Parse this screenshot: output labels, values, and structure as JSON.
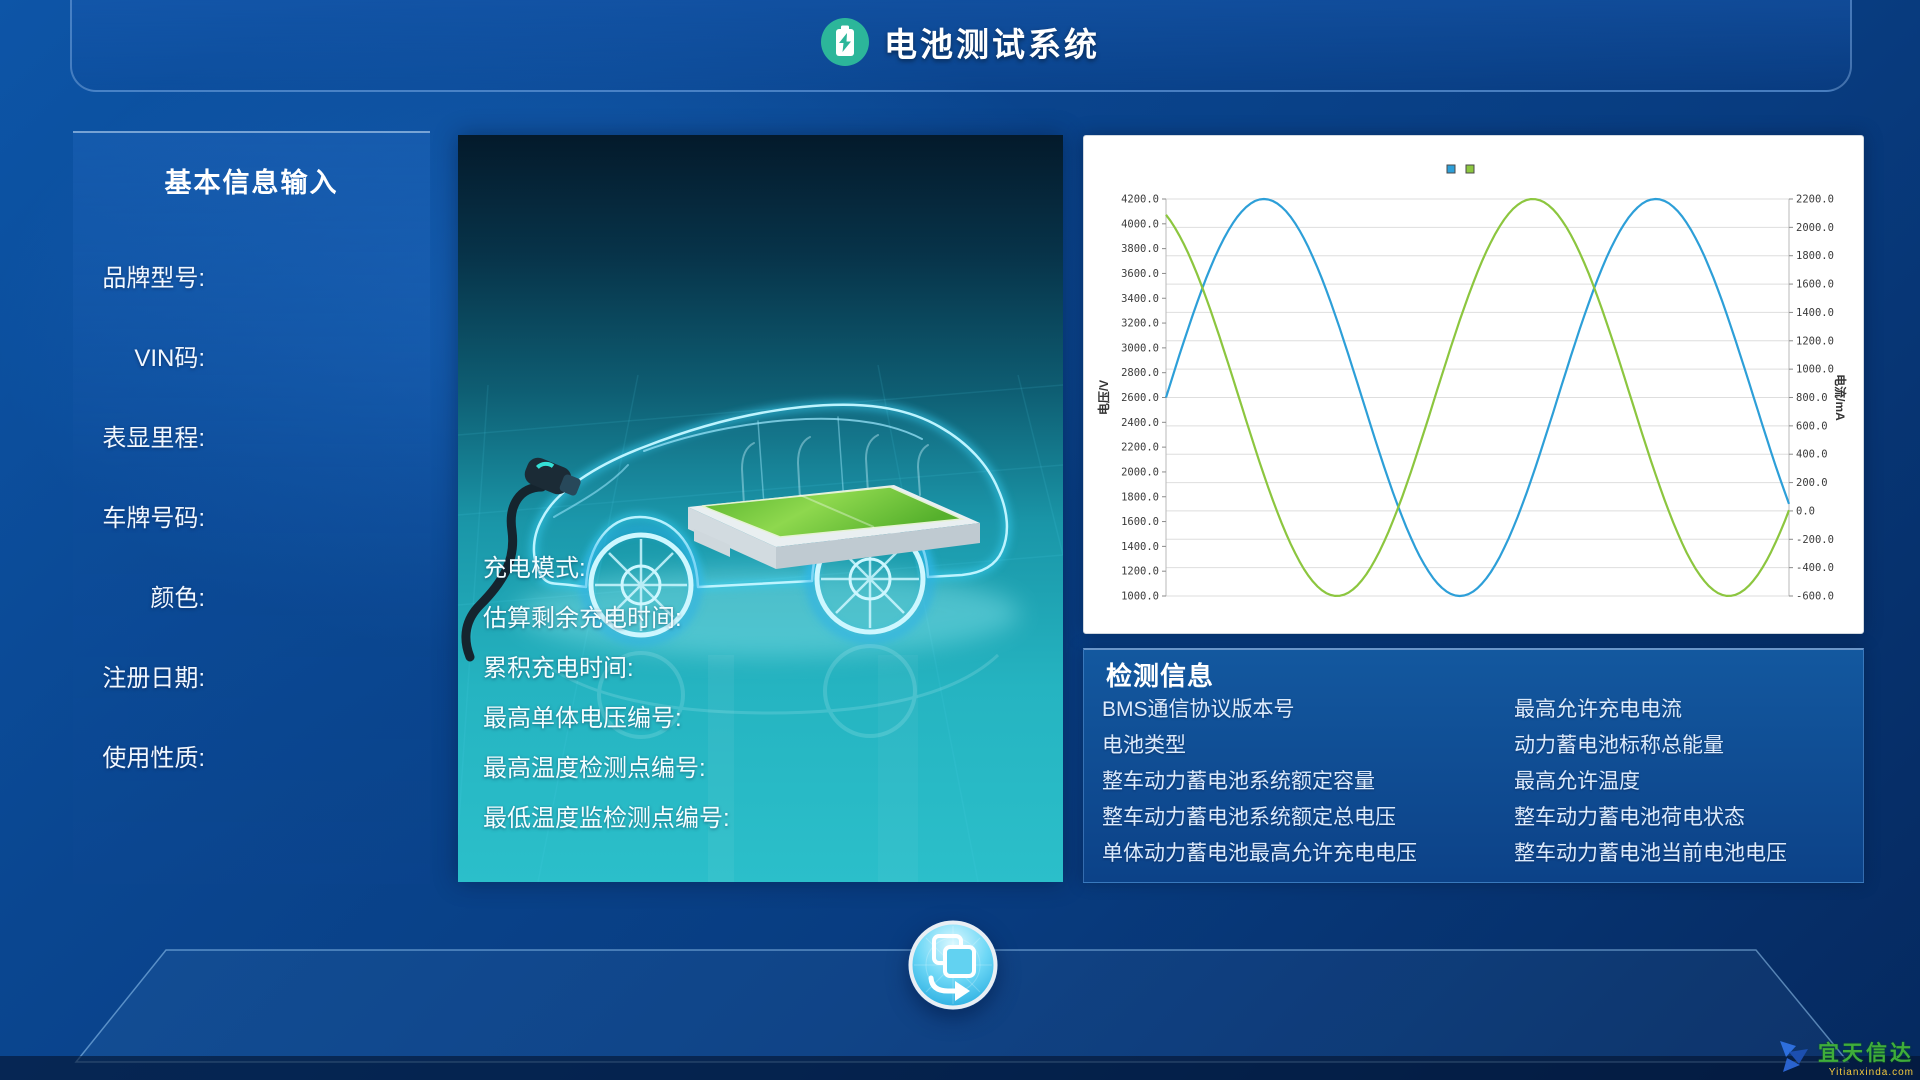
{
  "header": {
    "title": "电池测试系统",
    "icon": "battery-charging-icon"
  },
  "sidebar": {
    "title": "基本信息输入",
    "fields": [
      "品牌型号:",
      "VIN码:",
      "表显里程:",
      "车牌号码:",
      "颜色:",
      "注册日期:",
      "使用性质:"
    ]
  },
  "vehicle_panel": {
    "fields": [
      "充电模式:",
      "估算剩余充电时间:",
      "累积充电时间:",
      "最高单体电压编号:",
      "最高温度检测点编号:",
      "最低温度监检测点编号:"
    ]
  },
  "chart_data": {
    "type": "line",
    "title": "",
    "grid": "horizontal",
    "legend": {
      "position": "top-center",
      "text_labels": false,
      "entries": [
        {
          "name": "电压",
          "color": "#2d9fd8"
        },
        {
          "name": "电流",
          "color": "#8cc63f"
        }
      ]
    },
    "axes": {
      "left": {
        "label": "电压/V",
        "min": 1000,
        "max": 4200,
        "step": 200,
        "tick_format": "0.0"
      },
      "right": {
        "label": "电流/mA",
        "min": -600,
        "max": 2200,
        "step": 200,
        "tick_format": "0.0"
      }
    },
    "series": [
      {
        "name": "电压",
        "axis": "left",
        "color": "#2d9fd8",
        "waveform": "sine",
        "center": 2600,
        "amplitude": 1600,
        "cycles": 1.59,
        "phase_deg": 0
      },
      {
        "name": "电流",
        "axis": "right",
        "color": "#8cc63f",
        "waveform": "sine",
        "center": 800,
        "amplitude": 1400,
        "cycles": 1.59,
        "phase_deg": 113
      }
    ]
  },
  "detection": {
    "title": "检测信息",
    "left_items": [
      "BMS通信协议版本号",
      "电池类型",
      "整车动力蓄电池系统额定容量",
      "整车动力蓄电池系统额定总电压",
      "单体动力蓄电池最高允许充电电压"
    ],
    "right_items": [
      "最高允许充电电流",
      "动力蓄电池标称总能量",
      "最高允许温度",
      "整车动力蓄电池荷电状态",
      "整车动力蓄电池当前电池电压"
    ]
  },
  "footer": {
    "icon": "transfer-icon"
  },
  "watermark": {
    "name": "宜天信达",
    "domain": "Yitianxinda.com"
  }
}
